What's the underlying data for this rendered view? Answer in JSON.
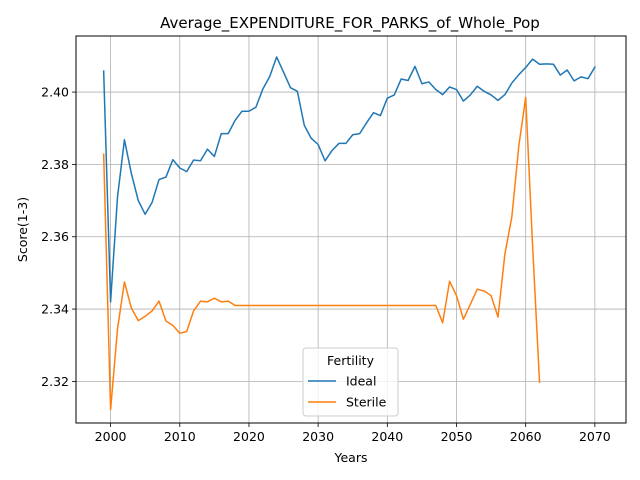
{
  "chart_data": {
    "type": "line",
    "title": "Average_EXPENDITURE_FOR_PARKS_of_Whole_Pop",
    "xlabel": "Years",
    "ylabel": "Score(1-3)",
    "xlim": [
      1995.0,
      2074.5
    ],
    "ylim": [
      2.3085,
      2.4155
    ],
    "xticks": [
      2000,
      2010,
      2020,
      2030,
      2040,
      2050,
      2060,
      2070
    ],
    "yticks": [
      2.32,
      2.34,
      2.36,
      2.38,
      2.4
    ],
    "xtick_labels": [
      "2000",
      "2010",
      "2020",
      "2030",
      "2040",
      "2050",
      "2060",
      "2070"
    ],
    "ytick_labels": [
      "2.32",
      "2.34",
      "2.36",
      "2.38",
      "2.40"
    ],
    "grid": true,
    "legend": {
      "title": "Fertility",
      "placement": "lower center"
    },
    "series": [
      {
        "name": "Ideal",
        "color": "#1f77b4",
        "x": [
          1999,
          2000,
          2001,
          2002,
          2003,
          2004,
          2005,
          2006,
          2007,
          2008,
          2009,
          2010,
          2011,
          2012,
          2013,
          2014,
          2015,
          2016,
          2017,
          2018,
          2019,
          2020,
          2021,
          2022,
          2023,
          2024,
          2025,
          2026,
          2027,
          2028,
          2029,
          2030,
          2031,
          2032,
          2033,
          2034,
          2035,
          2036,
          2037,
          2038,
          2039,
          2040,
          2041,
          2042,
          2043,
          2044,
          2045,
          2046,
          2047,
          2048,
          2049,
          2050,
          2051,
          2052,
          2053,
          2054,
          2055,
          2056,
          2057,
          2058,
          2059,
          2060,
          2061,
          2062,
          2063,
          2064,
          2065,
          2066,
          2067,
          2068,
          2069,
          2070
        ],
        "y": [
          2.4058,
          2.342,
          2.371,
          2.3868,
          2.3775,
          2.37,
          2.3662,
          2.3695,
          2.3758,
          2.3765,
          2.3813,
          2.379,
          2.378,
          2.3812,
          2.381,
          2.3842,
          2.3822,
          2.3885,
          2.3885,
          2.3922,
          2.3947,
          2.3947,
          2.3958,
          2.4008,
          2.4043,
          2.4097,
          2.4055,
          2.4012,
          2.4002,
          2.3908,
          2.3872,
          2.3855,
          2.381,
          2.3838,
          2.3858,
          2.3858,
          2.3882,
          2.3885,
          2.3915,
          2.3943,
          2.3935,
          2.3983,
          2.3992,
          2.4036,
          2.4032,
          2.4071,
          2.4023,
          2.4028,
          2.4007,
          2.3993,
          2.4014,
          2.4007,
          2.3975,
          2.3992,
          2.4016,
          2.4002,
          2.3992,
          2.3977,
          2.3993,
          2.4025,
          2.4048,
          2.4068,
          2.4091,
          2.4077,
          2.4078,
          2.4077,
          2.4047,
          2.4061,
          2.4031,
          2.4042,
          2.4037,
          2.4069
        ]
      },
      {
        "name": "Sterile",
        "color": "#ff7f0e",
        "x": [
          1999,
          2000,
          2001,
          2002,
          2003,
          2004,
          2005,
          2006,
          2007,
          2008,
          2009,
          2010,
          2011,
          2012,
          2013,
          2014,
          2015,
          2016,
          2017,
          2018,
          2019,
          2020,
          2021,
          2022,
          2023,
          2024,
          2025,
          2026,
          2027,
          2028,
          2029,
          2030,
          2031,
          2032,
          2033,
          2034,
          2035,
          2036,
          2037,
          2038,
          2039,
          2040,
          2041,
          2042,
          2043,
          2044,
          2045,
          2046,
          2047,
          2048,
          2049,
          2050,
          2051,
          2052,
          2053,
          2054,
          2055,
          2056,
          2057,
          2058,
          2059,
          2060,
          2061,
          2062
        ],
        "y": [
          2.3828,
          2.3122,
          2.3345,
          2.3475,
          2.3403,
          2.3368,
          2.338,
          2.3395,
          2.3422,
          2.3367,
          2.3355,
          2.3333,
          2.3338,
          2.3395,
          2.3422,
          2.342,
          2.343,
          2.342,
          2.3422,
          2.341,
          2.341,
          2.341,
          2.341,
          2.341,
          2.341,
          2.341,
          2.341,
          2.341,
          2.341,
          2.341,
          2.341,
          2.341,
          2.341,
          2.341,
          2.341,
          2.341,
          2.341,
          2.341,
          2.341,
          2.341,
          2.341,
          2.341,
          2.341,
          2.341,
          2.341,
          2.341,
          2.341,
          2.341,
          2.341,
          2.3362,
          2.3477,
          2.3437,
          2.3372,
          2.3413,
          2.3455,
          2.345,
          2.3437,
          2.3378,
          2.3553,
          2.3655,
          2.385,
          2.3985,
          2.3575,
          2.3198
        ]
      }
    ]
  }
}
